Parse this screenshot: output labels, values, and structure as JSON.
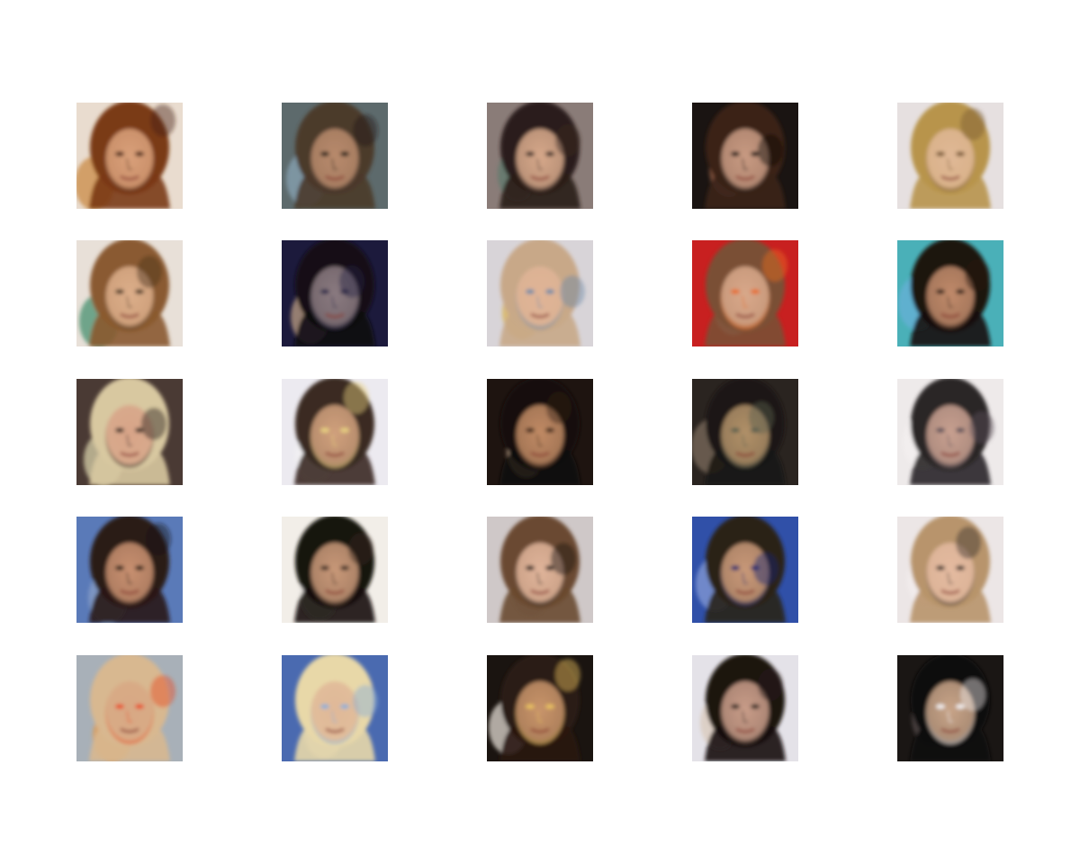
{
  "figure": {
    "rows": 5,
    "cols": 5,
    "tiles": [
      {
        "bg": "#e9dccf",
        "hair": "#7a3a14",
        "skin": "#d9a07a",
        "shade": "#4a2410",
        "accent": "#c8843c"
      },
      {
        "bg": "#5d6a6c",
        "hair": "#4b3a2a",
        "skin": "#b88a6c",
        "shade": "#1f1a16",
        "accent": "#8aa6b8"
      },
      {
        "bg": "#8a7c78",
        "hair": "#2a1e1a",
        "skin": "#d6a88a",
        "shade": "#3a2a26",
        "accent": "#5c7a6c"
      },
      {
        "bg": "#1a1412",
        "hair": "#3a2418",
        "skin": "#c89a82",
        "shade": "#0e0a08",
        "accent": "#a06448"
      },
      {
        "bg": "#e6e0e0",
        "hair": "#b8944c",
        "skin": "#e0b896",
        "shade": "#7a5a34",
        "accent": "#d8c8b8"
      },
      {
        "bg": "#e8e0d8",
        "hair": "#8a5a30",
        "skin": "#dcae8a",
        "shade": "#4a3420",
        "accent": "#3a8a6a"
      },
      {
        "bg": "#1c1a3c",
        "hair": "#120e12",
        "skin": "#8a7a80",
        "shade": "#2a2848",
        "accent": "#c8a888"
      },
      {
        "bg": "#d8d4d8",
        "hair": "#c8a888",
        "skin": "#e0b496",
        "shade": "#6a8aa8",
        "accent": "#d8b048"
      },
      {
        "bg": "#c82020",
        "hair": "#7a5034",
        "skin": "#d8a88a",
        "shade": "#e86a20",
        "accent": "#e8d0c0"
      },
      {
        "bg": "#4ab0b8",
        "hair": "#1a1210",
        "skin": "#c08a6a",
        "shade": "#2a1a12",
        "accent": "#6ab0d8"
      },
      {
        "bg": "#4a3a34",
        "hair": "#d8c8a0",
        "skin": "#d8a488",
        "shade": "#2a201c",
        "accent": "#e0d8b0"
      },
      {
        "bg": "#eceaf0",
        "hair": "#3a2a22",
        "skin": "#d0a07c",
        "shade": "#e8d080",
        "accent": "#f4f2f4"
      },
      {
        "bg": "#1e1410",
        "hair": "#120c0a",
        "skin": "#c08a64",
        "shade": "#3a2418",
        "accent": "#e8c8a8"
      },
      {
        "bg": "#2a2420",
        "hair": "#1a1614",
        "skin": "#b09068",
        "shade": "#5a6050",
        "accent": "#807060"
      },
      {
        "bg": "#eeeaea",
        "hair": "#2a2628",
        "skin": "#c8a090",
        "shade": "#5a5058",
        "accent": "#f4f0f0"
      },
      {
        "bg": "#5a7ab8",
        "hair": "#2a1a14",
        "skin": "#c89070",
        "shade": "#1a1210",
        "accent": "#8aa0c8"
      },
      {
        "bg": "#f2eee8",
        "hair": "#18120e",
        "skin": "#c89878",
        "shade": "#3a2a20",
        "accent": "#e8e4e0"
      },
      {
        "bg": "#cfc8c8",
        "hair": "#6a4a30",
        "skin": "#e0b49a",
        "shade": "#1a1616",
        "accent": "#a8a0a0"
      },
      {
        "bg": "#3050a8",
        "hair": "#2a2218",
        "skin": "#c89878",
        "shade": "#1a2870",
        "accent": "#8aa0d8"
      },
      {
        "bg": "#ece6e6",
        "hair": "#b8946c",
        "skin": "#e4baa0",
        "shade": "#3a302c",
        "accent": "#f4eeee"
      },
      {
        "bg": "#a8b0b8",
        "hair": "#d8b890",
        "skin": "#d8a884",
        "shade": "#e84a20",
        "accent": "#e89a40"
      },
      {
        "bg": "#4a6ab0",
        "hair": "#e8d8a8",
        "skin": "#e0b898",
        "shade": "#8ab0d8",
        "accent": "#c8d0e0"
      },
      {
        "bg": "#1a1410",
        "hair": "#2a1a12",
        "skin": "#c8946a",
        "shade": "#e8c060",
        "accent": "#f0e8e0"
      },
      {
        "bg": "#e4e2e8",
        "hair": "#1a1210",
        "skin": "#c89c88",
        "shade": "#2a201c",
        "accent": "#d8c8b8"
      },
      {
        "bg": "#1a1614",
        "hair": "#0c0a0a",
        "skin": "#c8a488",
        "shade": "#f2eeee",
        "accent": "#5a5050"
      }
    ]
  }
}
